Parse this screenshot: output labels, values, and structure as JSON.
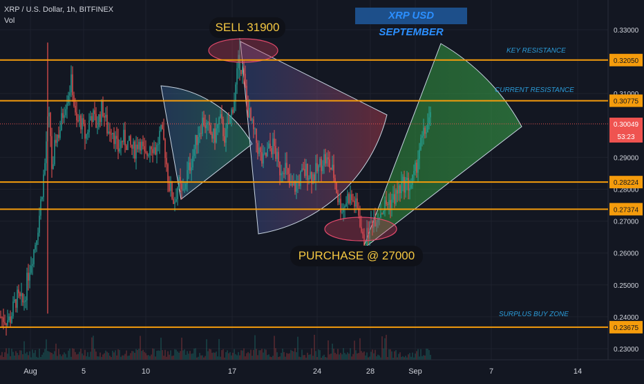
{
  "header": {
    "symbol_line": "XRP / U.S. Dollar, 1h, BITFINEX",
    "volume_label": "Vol"
  },
  "chart_title": "XRP USD SEPTEMBER",
  "annotations": {
    "sell": "SELL 31900",
    "purchase": "PURCHASE @ 27000",
    "key_resistance": "KEY RESISTANCE",
    "current_resistance": "CURRENT RESISTANCE",
    "surplus_buy_zone": "SURPLUS BUY ZONE"
  },
  "colors": {
    "background": "#131722",
    "level_line": "#f59c0c",
    "level_badge": "#f59c0c",
    "current_price_badge": "#ef5350",
    "candle_up": "#26a69a",
    "candle_down": "#ef5350",
    "axis_text": "#d1d4dc",
    "zone_label": "#2b9bd8"
  },
  "chart_data": {
    "type": "candlestick",
    "title": "XRP USD SEPTEMBER",
    "x_axis": {
      "ticks": [
        "Aug",
        "5",
        "10",
        "17",
        "24",
        "28",
        "Sep",
        "7",
        "14"
      ]
    },
    "y_axis": {
      "ticks": [
        "0.33000",
        "0.31000",
        "0.29000",
        "0.28000",
        "0.27000",
        "0.26000",
        "0.25000",
        "0.24000",
        "0.23000"
      ],
      "range": [
        0.226,
        0.336
      ]
    },
    "levels": [
      {
        "value": 0.3205,
        "badge": "0.32050",
        "label": "KEY RESISTANCE"
      },
      {
        "value": 0.30775,
        "badge": "0.30775",
        "label": "CURRENT RESISTANCE"
      },
      {
        "value": 0.28224,
        "badge": "0.28224",
        "label": ""
      },
      {
        "value": 0.27374,
        "badge": "0.27374",
        "label": ""
      },
      {
        "value": 0.23675,
        "badge": "0.23675",
        "label": "SURPLUS BUY ZONE"
      }
    ],
    "current_price": {
      "value": 0.30049,
      "badge": "0.30049",
      "countdown": "53:23"
    },
    "price_path": [
      [
        0,
        0.24
      ],
      [
        14,
        0.239
      ],
      [
        24,
        0.246
      ],
      [
        34,
        0.244
      ],
      [
        42,
        0.255
      ],
      [
        50,
        0.262
      ],
      [
        56,
        0.27
      ],
      [
        62,
        0.282
      ],
      [
        66,
        0.29
      ],
      [
        68,
        0.3
      ],
      [
        72,
        0.302
      ],
      [
        76,
        0.282
      ],
      [
        80,
        0.296
      ],
      [
        86,
        0.298
      ],
      [
        92,
        0.305
      ],
      [
        98,
        0.31
      ],
      [
        104,
        0.314
      ],
      [
        110,
        0.3
      ],
      [
        116,
        0.302
      ],
      [
        124,
        0.296
      ],
      [
        132,
        0.304
      ],
      [
        140,
        0.3
      ],
      [
        148,
        0.306
      ],
      [
        156,
        0.298
      ],
      [
        162,
        0.3
      ],
      [
        170,
        0.292
      ],
      [
        178,
        0.296
      ],
      [
        186,
        0.294
      ],
      [
        194,
        0.292
      ],
      [
        202,
        0.296
      ],
      [
        210,
        0.289
      ],
      [
        218,
        0.295
      ],
      [
        226,
        0.292
      ],
      [
        232,
        0.298
      ],
      [
        238,
        0.294
      ],
      [
        244,
        0.282
      ],
      [
        252,
        0.276
      ],
      [
        258,
        0.282
      ],
      [
        264,
        0.278
      ],
      [
        270,
        0.284
      ],
      [
        278,
        0.29
      ],
      [
        286,
        0.297
      ],
      [
        294,
        0.302
      ],
      [
        302,
        0.298
      ],
      [
        310,
        0.296
      ],
      [
        318,
        0.302
      ],
      [
        326,
        0.296
      ],
      [
        334,
        0.303
      ],
      [
        340,
        0.31
      ],
      [
        346,
        0.321
      ],
      [
        352,
        0.316
      ],
      [
        358,
        0.306
      ],
      [
        364,
        0.3
      ],
      [
        372,
        0.294
      ],
      [
        380,
        0.288
      ],
      [
        388,
        0.292
      ],
      [
        396,
        0.294
      ],
      [
        404,
        0.286
      ],
      [
        412,
        0.288
      ],
      [
        420,
        0.28
      ],
      [
        428,
        0.281
      ],
      [
        436,
        0.284
      ],
      [
        444,
        0.286
      ],
      [
        452,
        0.284
      ],
      [
        460,
        0.286
      ],
      [
        468,
        0.29
      ],
      [
        476,
        0.288
      ],
      [
        484,
        0.284
      ],
      [
        490,
        0.276
      ],
      [
        496,
        0.274
      ],
      [
        504,
        0.278
      ],
      [
        512,
        0.276
      ],
      [
        520,
        0.272
      ],
      [
        526,
        0.262
      ],
      [
        532,
        0.266
      ],
      [
        538,
        0.27
      ],
      [
        546,
        0.272
      ],
      [
        554,
        0.274
      ],
      [
        562,
        0.276
      ],
      [
        570,
        0.277
      ],
      [
        578,
        0.28
      ],
      [
        586,
        0.282
      ],
      [
        594,
        0.281
      ],
      [
        600,
        0.284
      ],
      [
        606,
        0.292
      ],
      [
        612,
        0.296
      ],
      [
        618,
        0.3
      ],
      [
        624,
        0.302
      ]
    ]
  }
}
